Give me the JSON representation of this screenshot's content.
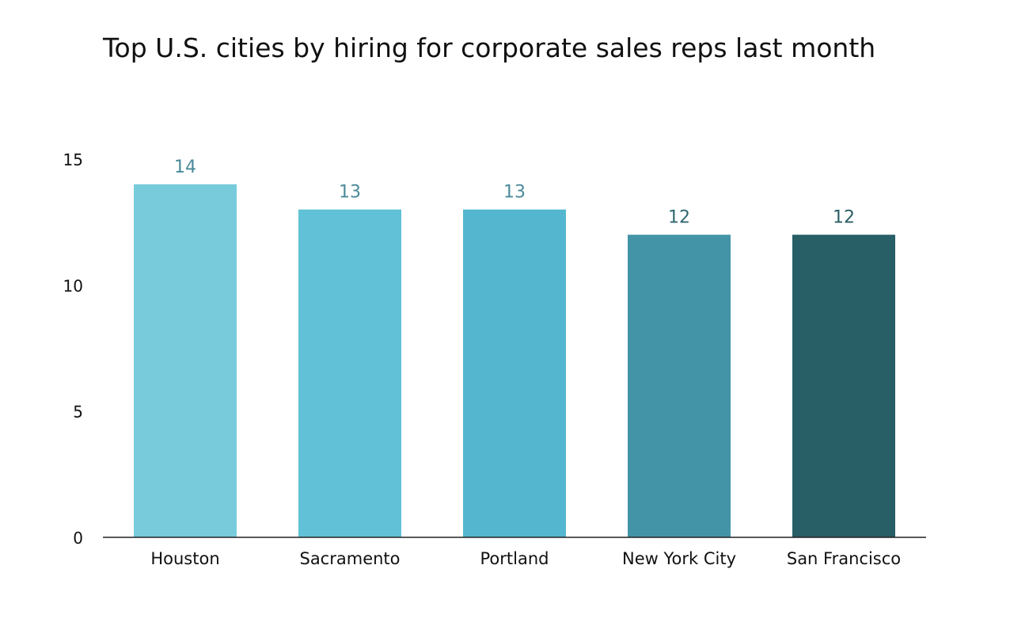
{
  "chart_data": {
    "type": "bar",
    "title": "Top U.S. cities by hiring for corporate sales reps last month",
    "xlabel": "",
    "ylabel": "",
    "categories": [
      "Houston",
      "Sacramento",
      "Portland",
      "New York City",
      "San Francisco"
    ],
    "values": [
      14,
      13,
      13,
      12,
      12
    ],
    "data_labels": [
      "14",
      "13",
      "13",
      "12",
      "12"
    ],
    "ylim": [
      0,
      15
    ],
    "yticks": [
      0,
      5,
      10,
      15
    ],
    "ytick_labels": [
      "0",
      "5",
      "10",
      "15"
    ],
    "grid": false,
    "legend": "none",
    "bar_colors": [
      "#77cbdb",
      "#61c2d7",
      "#55b7cf",
      "#4494a7",
      "#285e66"
    ],
    "label_colors": [
      "#4a8a9a",
      "#4a8a9a",
      "#4a8a9a",
      "#2f6770",
      "#285e66"
    ]
  }
}
